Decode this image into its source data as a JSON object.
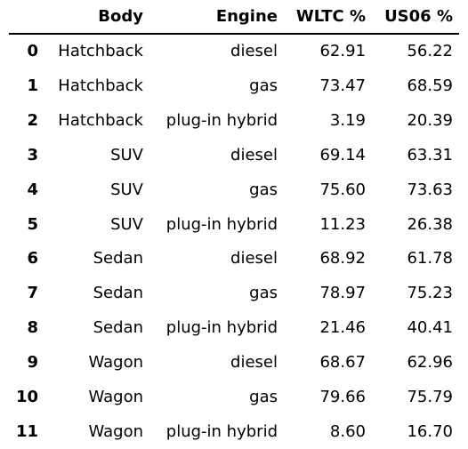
{
  "chart_data": {
    "type": "table",
    "columns": [
      "Body",
      "Engine",
      "WLTC %",
      "US06 %"
    ],
    "index": [
      "0",
      "1",
      "2",
      "3",
      "4",
      "5",
      "6",
      "7",
      "8",
      "9",
      "10",
      "11"
    ],
    "rows": [
      [
        "Hatchback",
        "diesel",
        "62.91",
        "56.22"
      ],
      [
        "Hatchback",
        "gas",
        "73.47",
        "68.59"
      ],
      [
        "Hatchback",
        "plug-in hybrid",
        "3.19",
        "20.39"
      ],
      [
        "SUV",
        "diesel",
        "69.14",
        "63.31"
      ],
      [
        "SUV",
        "gas",
        "75.60",
        "73.63"
      ],
      [
        "SUV",
        "plug-in hybrid",
        "11.23",
        "26.38"
      ],
      [
        "Sedan",
        "diesel",
        "68.92",
        "61.78"
      ],
      [
        "Sedan",
        "gas",
        "78.97",
        "75.23"
      ],
      [
        "Sedan",
        "plug-in hybrid",
        "21.46",
        "40.41"
      ],
      [
        "Wagon",
        "diesel",
        "68.67",
        "62.96"
      ],
      [
        "Wagon",
        "gas",
        "79.66",
        "75.79"
      ],
      [
        "Wagon",
        "plug-in hybrid",
        "8.60",
        "16.70"
      ]
    ]
  }
}
